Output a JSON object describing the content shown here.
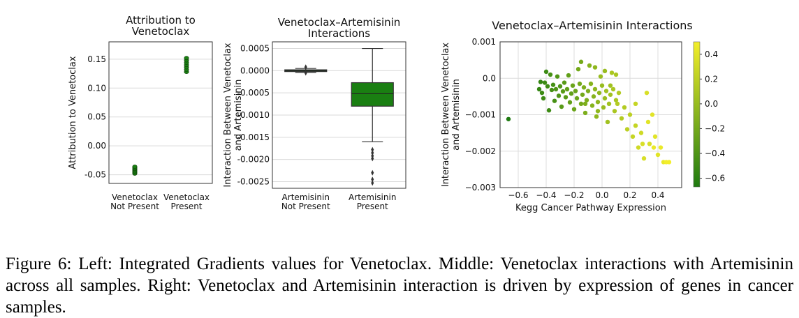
{
  "figure": {
    "caption": "Figure 6: Left: Integrated Gradients values for Venetoclax. Middle: Venetoclax interactions with Artemisinin across all samples. Right: Venetoclax and Artemisinin interaction is driven by expression of genes in cancer samples."
  },
  "chart_data": [
    {
      "type": "scatter",
      "title": [
        "Attribution to",
        "Venetoclax"
      ],
      "ylabel": "Attribution to Venetoclax",
      "xlabel": "",
      "categories": [
        [
          "Venetoclax",
          "Not Present"
        ],
        [
          "Venetoclax",
          "Present"
        ]
      ],
      "yticks": [
        "-0.05",
        "0.00",
        "0.05",
        "0.10",
        "0.15"
      ],
      "ylim": [
        -0.065,
        0.18
      ],
      "grid": "y",
      "color": "#1a7f12",
      "series": [
        {
          "category": 0,
          "values": [
            -0.048,
            -0.046,
            -0.044,
            -0.042,
            -0.04,
            -0.038,
            -0.036
          ]
        },
        {
          "category": 1,
          "values": [
            0.128,
            0.132,
            0.136,
            0.14,
            0.144,
            0.148,
            0.152
          ]
        }
      ]
    },
    {
      "type": "box",
      "title": [
        "Venetoclax–Artemisinin",
        "Interactions"
      ],
      "ylabel": [
        "Interaction Between Venetoclax",
        "and Artemisinin"
      ],
      "xlabel": "",
      "categories": [
        [
          "Artemisinin",
          "Not Present"
        ],
        [
          "Artemisinin",
          "Present"
        ]
      ],
      "yticks": [
        "0.0005",
        "0.0000",
        "-0.0005",
        "-0.0010",
        "-0.0015",
        "-0.0020",
        "-0.0025"
      ],
      "ylim": [
        -0.00265,
        0.00065
      ],
      "grid": "y",
      "color": "#1a7f12",
      "boxes": [
        {
          "q1": -2e-05,
          "median": 0.0,
          "q3": 2e-05,
          "whisker_low": -4e-05,
          "whisker_high": 5e-05,
          "outliers": [
            8e-05,
            -5e-05
          ]
        },
        {
          "q1": -0.0008,
          "median": -0.00052,
          "q3": -0.00027,
          "whisker_low": -0.0016,
          "whisker_high": 0.0005,
          "outliers": [
            -0.00178,
            -0.00185,
            -0.00192,
            -0.00198,
            -0.0023,
            -0.00245,
            -0.00253
          ]
        }
      ]
    },
    {
      "type": "scatter",
      "title": "Venetoclax–Artemisinin  Interactions",
      "xlabel": "Kegg Cancer Pathway Expression",
      "ylabel": [
        "Interaction Between Venetoclax",
        "and Artemisinin"
      ],
      "xticks": [
        "−0.6",
        "−0.4",
        "−0.2",
        "0.0",
        "0.2",
        "0.4"
      ],
      "yticks": [
        "0.001",
        "0.0",
        "−0.001",
        "−0.002",
        "−0.003"
      ],
      "xlim": [
        -0.73,
        0.57
      ],
      "ylim": [
        -0.003,
        0.001
      ],
      "grid": "both",
      "colorbar": {
        "ticks": [
          "0.4",
          "0.2",
          "0.0",
          "−0.2",
          "−0.4",
          "−0.6"
        ],
        "range": [
          -0.67,
          0.5
        ],
        "low_color": "#1e7a10",
        "high_color": "#f3ee2a"
      },
      "points": [
        [
          -0.67,
          -0.00112,
          -0.67
        ],
        [
          -0.4,
          0.00018,
          -0.5
        ],
        [
          -0.41,
          -0.00012,
          -0.5
        ],
        [
          -0.39,
          -0.00022,
          -0.5
        ],
        [
          -0.42,
          -0.00055,
          -0.5
        ],
        [
          -0.38,
          -0.00088,
          -0.5
        ],
        [
          -0.36,
          -0.00032,
          -0.45
        ],
        [
          -0.35,
          -0.00018,
          -0.45
        ],
        [
          -0.34,
          -0.00062,
          -0.45
        ],
        [
          -0.33,
          -0.0003,
          -0.4
        ],
        [
          -0.32,
          5e-05,
          -0.4
        ],
        [
          -0.31,
          -0.00048,
          -0.4
        ],
        [
          -0.3,
          -0.00022,
          -0.4
        ],
        [
          -0.29,
          -0.00078,
          -0.35
        ],
        [
          -0.28,
          -0.00036,
          -0.35
        ],
        [
          -0.27,
          -0.00012,
          -0.35
        ],
        [
          -0.26,
          -0.00052,
          -0.35
        ],
        [
          -0.25,
          -0.0003,
          -0.3
        ],
        [
          -0.24,
          8e-05,
          -0.3
        ],
        [
          -0.23,
          -0.00066,
          -0.3
        ],
        [
          -0.22,
          -0.00042,
          -0.3
        ],
        [
          -0.21,
          -0.0002,
          -0.25
        ],
        [
          -0.2,
          -0.00085,
          -0.25
        ],
        [
          -0.19,
          -0.00035,
          -0.25
        ],
        [
          -0.18,
          -0.00055,
          -0.25
        ],
        [
          -0.17,
          0.00025,
          -0.2
        ],
        [
          -0.16,
          -0.00015,
          -0.2
        ],
        [
          -0.15,
          -0.0007,
          -0.2
        ],
        [
          -0.14,
          -0.00045,
          -0.2
        ],
        [
          -0.13,
          -0.00025,
          -0.15
        ],
        [
          -0.12,
          -0.00095,
          -0.15
        ],
        [
          -0.11,
          -0.0006,
          -0.15
        ],
        [
          -0.1,
          -0.00035,
          -0.15
        ],
        [
          -0.09,
          0.00035,
          -0.1
        ],
        [
          -0.08,
          -0.00015,
          -0.1
        ],
        [
          -0.07,
          -0.00075,
          -0.1
        ],
        [
          -0.06,
          -0.0005,
          -0.1
        ],
        [
          -0.05,
          -0.0003,
          -0.05
        ],
        [
          -0.04,
          -0.00105,
          -0.05
        ],
        [
          -0.03,
          -0.00065,
          -0.05
        ],
        [
          -0.02,
          -0.0004,
          -0.05
        ],
        [
          -0.01,
          5e-05,
          0.0
        ],
        [
          0.0,
          -0.0002,
          0.0
        ],
        [
          0.01,
          -0.0008,
          0.0
        ],
        [
          0.02,
          -0.00055,
          0.0
        ],
        [
          0.03,
          -0.00035,
          0.05
        ],
        [
          0.04,
          -0.0012,
          0.05
        ],
        [
          0.05,
          -0.0007,
          0.05
        ],
        [
          0.06,
          -0.00045,
          0.05
        ],
        [
          0.07,
          0.00015,
          0.1
        ],
        [
          0.08,
          -0.0003,
          0.1
        ],
        [
          0.09,
          -0.0009,
          0.1
        ],
        [
          0.1,
          -0.0006,
          0.1
        ],
        [
          0.12,
          -0.0004,
          0.15
        ],
        [
          0.14,
          -0.0011,
          0.15
        ],
        [
          0.16,
          -0.0008,
          0.15
        ],
        [
          0.18,
          -0.0014,
          0.2
        ],
        [
          0.2,
          -0.001,
          0.2
        ],
        [
          0.22,
          -0.0016,
          0.25
        ],
        [
          0.24,
          -0.0013,
          0.25
        ],
        [
          0.26,
          -0.0019,
          0.3
        ],
        [
          0.28,
          -0.0015,
          0.3
        ],
        [
          0.3,
          -0.0022,
          0.35
        ],
        [
          0.32,
          -0.0004,
          0.35
        ],
        [
          0.34,
          -0.0018,
          0.35
        ],
        [
          0.36,
          -0.001,
          0.4
        ],
        [
          0.38,
          -0.0016,
          0.4
        ],
        [
          0.4,
          -0.0021,
          0.4
        ],
        [
          0.42,
          -0.0019,
          0.45
        ],
        [
          0.44,
          -0.0023,
          0.45
        ],
        [
          0.46,
          -0.0023,
          0.5
        ],
        [
          0.48,
          -0.0023,
          0.5
        ],
        [
          -0.45,
          -0.0003,
          -0.55
        ],
        [
          -0.44,
          -0.0001,
          -0.55
        ],
        [
          -0.43,
          -0.0004,
          -0.5
        ],
        [
          -0.37,
          0.0001,
          -0.45
        ],
        [
          -0.15,
          0.00045,
          -0.2
        ],
        [
          -0.05,
          0.0003,
          -0.05
        ],
        [
          0.02,
          0.0002,
          0.0
        ],
        [
          0.1,
          0.0001,
          0.1
        ],
        [
          0.06,
          -0.0002,
          0.05
        ],
        [
          -0.03,
          -0.0009,
          -0.05
        ],
        [
          -0.12,
          -0.0007,
          -0.15
        ],
        [
          0.11,
          -0.0007,
          0.15
        ],
        [
          0.24,
          -0.0007,
          0.25
        ],
        [
          0.33,
          -0.0012,
          0.4
        ],
        [
          0.37,
          -0.0019,
          0.45
        ],
        [
          0.29,
          -0.0018,
          0.35
        ]
      ]
    }
  ]
}
